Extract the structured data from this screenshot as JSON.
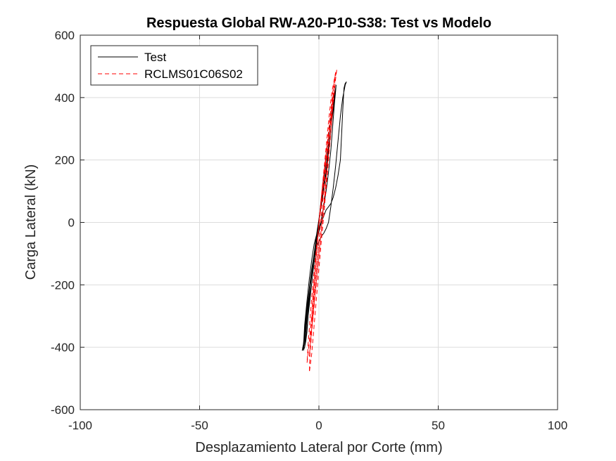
{
  "chart_data": {
    "type": "line",
    "title": "Respuesta Global RW-A20-P10-S38: Test vs Modelo",
    "xlabel": "Desplazamiento Lateral por Corte (mm)",
    "ylabel": "Carga Lateral (kN)",
    "xlim": [
      -100,
      100
    ],
    "ylim": [
      -600,
      600
    ],
    "xticks": [
      -100,
      -50,
      0,
      50,
      100
    ],
    "yticks": [
      -600,
      -400,
      -200,
      0,
      200,
      400,
      600
    ],
    "xtick_labels": [
      "-100",
      "-50",
      "0",
      "50",
      "100"
    ],
    "ytick_labels": [
      "-600",
      "-400",
      "-200",
      "0",
      "200",
      "400",
      "600"
    ],
    "grid": true,
    "legend_position": "top-left",
    "series": [
      {
        "name": "Test",
        "color": "#000000",
        "style": "solid",
        "x": [
          0,
          0.5,
          1.2,
          2,
          3,
          4,
          5,
          6,
          6.5,
          7,
          7,
          6,
          5,
          4,
          3,
          2,
          1,
          0,
          -1,
          -2,
          -3,
          -3.5,
          -4,
          -4.5,
          -5,
          -5.5,
          -6,
          -6.5,
          -6,
          -5,
          -4,
          -3,
          -2,
          -1,
          0,
          1,
          2,
          3,
          4,
          5,
          6,
          7,
          7.5,
          8,
          8.5,
          9,
          10,
          11,
          11.5,
          11,
          10.5,
          10,
          9.5,
          9,
          8,
          7,
          6,
          5,
          4,
          3,
          2,
          1,
          0,
          -1,
          -2,
          -3,
          -4,
          -5,
          -5.5,
          -6,
          -6.5,
          -7,
          -6.5,
          -6,
          -5,
          -4,
          -3,
          -2,
          -1,
          0,
          1,
          2,
          3,
          4,
          5,
          5.5,
          6,
          6.5,
          7,
          7.2,
          6.5,
          5.5,
          4.5,
          3.5,
          2.5,
          1.5,
          0.5,
          -0.5,
          -1.5,
          -2.5,
          -3.5,
          -4.5,
          -5,
          -5.5,
          -6,
          -5.5,
          -4.5,
          -3.5,
          -2.5,
          -1.5,
          -0.5,
          0
        ],
        "y": [
          0,
          40,
          90,
          150,
          210,
          270,
          330,
          380,
          410,
          430,
          420,
          360,
          300,
          240,
          180,
          120,
          60,
          10,
          -40,
          -100,
          -160,
          -200,
          -250,
          -300,
          -350,
          -380,
          -400,
          -410,
          -370,
          -290,
          -210,
          -150,
          -110,
          -80,
          -60,
          -45,
          -35,
          -20,
          0,
          50,
          110,
          180,
          220,
          260,
          300,
          340,
          400,
          440,
          450,
          445,
          430,
          360,
          280,
          200,
          150,
          110,
          80,
          60,
          50,
          40,
          20,
          0,
          -30,
          -60,
          -100,
          -150,
          -210,
          -270,
          -310,
          -350,
          -390,
          -410,
          -400,
          -330,
          -250,
          -180,
          -120,
          -70,
          -40,
          -20,
          10,
          50,
          100,
          160,
          230,
          280,
          330,
          380,
          420,
          440,
          400,
          330,
          260,
          190,
          130,
          80,
          30,
          -20,
          -80,
          -140,
          -200,
          -270,
          -310,
          -350,
          -400,
          -380,
          -300,
          -230,
          -160,
          -100,
          -40,
          0
        ]
      },
      {
        "name": "RCLMS01C06S02",
        "color": "#ff0000",
        "style": "dashed",
        "x": [
          0,
          1,
          2,
          3,
          4,
          5,
          5.5,
          6,
          6.5,
          7,
          6,
          5,
          4,
          3,
          2,
          1,
          0,
          -1,
          -2,
          -3,
          -3.5,
          -4,
          -4.5,
          -5,
          -4.5,
          -4,
          -3,
          -2,
          -1,
          0,
          1,
          2,
          3,
          4,
          5,
          6,
          6.5,
          7,
          7.5,
          7,
          6,
          5,
          4,
          3,
          2,
          1,
          0,
          -1,
          -2,
          -2.5,
          -3,
          -3.5,
          -4,
          -3.5,
          -3,
          -2,
          -1,
          0,
          1,
          2,
          3,
          4,
          5,
          5.5,
          6,
          6.5,
          6,
          5,
          4,
          3,
          2,
          1,
          0,
          -1,
          -1.5,
          -2,
          -2.5,
          -3,
          -3.5,
          -4,
          -3,
          -2,
          -1,
          0,
          1,
          2,
          3,
          4,
          5,
          5.5,
          6,
          5,
          4,
          3,
          2,
          1,
          0,
          -0.5,
          -1,
          -2,
          -2.5,
          -3,
          -2.5,
          -2,
          -1,
          0
        ],
        "y": [
          0,
          80,
          160,
          240,
          320,
          390,
          420,
          440,
          460,
          480,
          430,
          360,
          290,
          220,
          150,
          80,
          0,
          -80,
          -160,
          -240,
          -290,
          -340,
          -390,
          -450,
          -420,
          -380,
          -300,
          -220,
          -140,
          -60,
          20,
          100,
          180,
          260,
          330,
          400,
          440,
          470,
          490,
          460,
          380,
          300,
          220,
          140,
          60,
          -20,
          -100,
          -180,
          -260,
          -300,
          -340,
          -380,
          -430,
          -400,
          -350,
          -270,
          -190,
          -110,
          -30,
          50,
          130,
          210,
          290,
          340,
          390,
          440,
          410,
          340,
          270,
          200,
          130,
          60,
          -10,
          -90,
          -140,
          -190,
          -240,
          -300,
          -370,
          -480,
          -420,
          -330,
          -240,
          -150,
          -60,
          20,
          110,
          200,
          290,
          350,
          410,
          350,
          280,
          210,
          140,
          70,
          0,
          -50,
          -100,
          -190,
          -250,
          -320,
          -290,
          -240,
          -150,
          -60
        ]
      }
    ]
  }
}
